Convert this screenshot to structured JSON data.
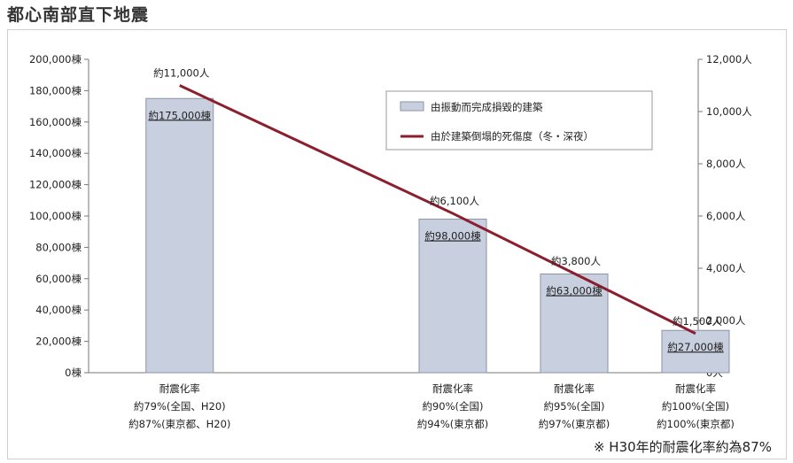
{
  "title": "都心南部直下地震",
  "note": "※ H30年的耐震化率約為87%",
  "chart_data": {
    "type": "bar",
    "left_axis": {
      "ticks": [
        "0棟",
        "20,000棟",
        "40,000棟",
        "60,000棟",
        "80,000棟",
        "100,000棟",
        "120,000棟",
        "140,000棟",
        "160,000棟",
        "180,000棟",
        "200,000棟"
      ],
      "tick_values": [
        0,
        20000,
        40000,
        60000,
        80000,
        100000,
        120000,
        140000,
        160000,
        180000,
        200000
      ],
      "ylim": [
        0,
        200000
      ]
    },
    "right_axis": {
      "ticks": [
        "0人",
        "2,000人",
        "4,000人",
        "6,000人",
        "8,000人",
        "10,000人",
        "12,000人"
      ],
      "tick_values": [
        0,
        2000,
        4000,
        6000,
        8000,
        10000,
        12000
      ],
      "ylim": [
        0,
        12000
      ]
    },
    "categories": [
      {
        "line1": "耐震化率",
        "line2": "約79%(全国、H20)",
        "line3": "約87%(東京都、H20)"
      },
      {
        "line1": "耐震化率",
        "line2": "約90%(全国)",
        "line3": "約94%(東京都)"
      },
      {
        "line1": "耐震化率",
        "line2": "約95%(全国)",
        "line3": "約97%(東京都)"
      },
      {
        "line1": "耐震化率",
        "line2": "約100%(全国)",
        "line3": "約100%(東京都)"
      }
    ],
    "category_positions": [
      0.75,
      3.0,
      4.0,
      5.0
    ],
    "series": [
      {
        "name": "由振動而完成損毀的建築",
        "kind": "bar",
        "values": [
          175000,
          98000,
          63000,
          27000
        ],
        "labels": [
          "約175,000棟",
          "約98,000棟",
          "約63,000棟",
          "約27,000棟"
        ],
        "color": "#c8cfdf",
        "edge": "#8a93a8"
      },
      {
        "name": "由於建築倒塌的死傷度（冬・深夜）",
        "kind": "line",
        "axis": "right",
        "values": [
          11000,
          6100,
          3800,
          1500
        ],
        "labels": [
          "約11,000人",
          "約6,100人",
          "約3,800人",
          "約1,500人"
        ],
        "color": "#8b1f2e"
      }
    ],
    "legend_position": "top-right"
  }
}
